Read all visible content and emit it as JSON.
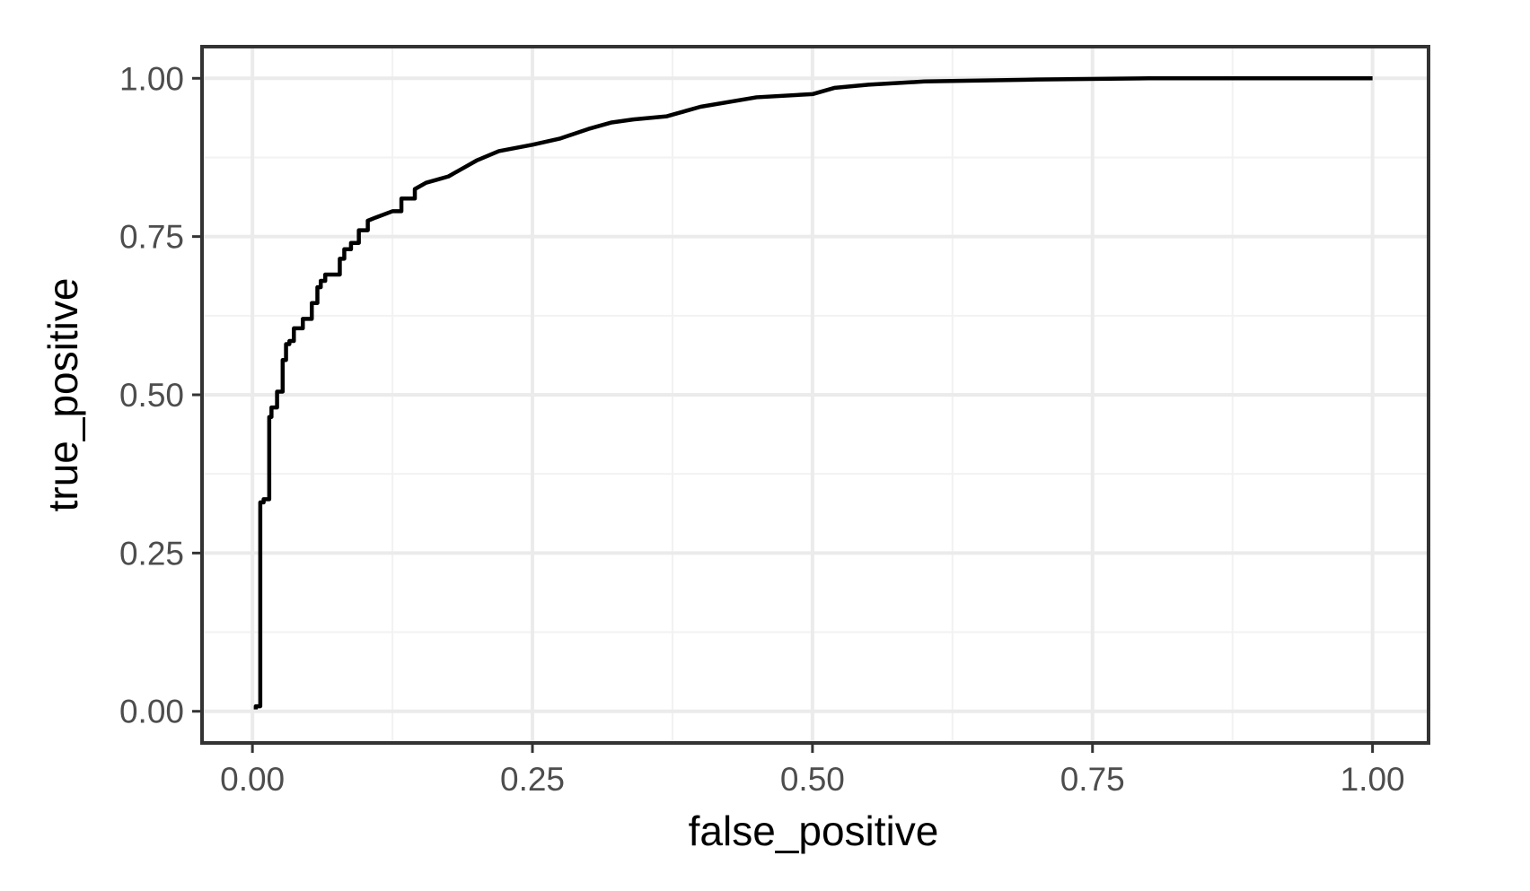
{
  "chart_data": {
    "type": "line",
    "title": "",
    "xlabel": "false_positive",
    "ylabel": "true_positive",
    "xlim": [
      -0.045,
      1.05
    ],
    "ylim": [
      -0.05,
      1.05
    ],
    "x_ticks": [
      "0.00",
      "0.25",
      "0.50",
      "0.75",
      "1.00"
    ],
    "y_ticks": [
      "0.00",
      "0.25",
      "0.50",
      "0.75",
      "1.00"
    ],
    "grid": true,
    "legend": "none",
    "colors": {
      "line": "#000000",
      "grid_major": "#ebebeb",
      "grid_minor": "#f2f2f2",
      "panel_border": "#333333",
      "tick_label": "#4d4d4d"
    },
    "series": [
      {
        "x": [
          0.003,
          0.003,
          0.007,
          0.007,
          0.01,
          0.01,
          0.015,
          0.015,
          0.017,
          0.017,
          0.022,
          0.022,
          0.027,
          0.027,
          0.03,
          0.03,
          0.033,
          0.033,
          0.037,
          0.037,
          0.045,
          0.045,
          0.053,
          0.053,
          0.058,
          0.058,
          0.061,
          0.061,
          0.065,
          0.065,
          0.078,
          0.078,
          0.082,
          0.082,
          0.088,
          0.088,
          0.095,
          0.095,
          0.103,
          0.103,
          0.11,
          0.125,
          0.133,
          0.133,
          0.145,
          0.145,
          0.155,
          0.165,
          0.175,
          0.185,
          0.19,
          0.2,
          0.22,
          0.25,
          0.275,
          0.3,
          0.32,
          0.34,
          0.37,
          0.4,
          0.45,
          0.5,
          0.52,
          0.55,
          0.6,
          0.7,
          0.8,
          1.0
        ],
        "y": [
          0.003,
          0.008,
          0.008,
          0.33,
          0.33,
          0.335,
          0.335,
          0.465,
          0.465,
          0.48,
          0.48,
          0.505,
          0.505,
          0.555,
          0.555,
          0.58,
          0.58,
          0.585,
          0.585,
          0.605,
          0.605,
          0.62,
          0.62,
          0.645,
          0.645,
          0.67,
          0.67,
          0.68,
          0.68,
          0.69,
          0.69,
          0.715,
          0.715,
          0.73,
          0.73,
          0.74,
          0.74,
          0.76,
          0.76,
          0.775,
          0.78,
          0.79,
          0.79,
          0.81,
          0.81,
          0.825,
          0.835,
          0.84,
          0.845,
          0.855,
          0.86,
          0.87,
          0.885,
          0.895,
          0.905,
          0.92,
          0.93,
          0.935,
          0.94,
          0.955,
          0.97,
          0.975,
          0.985,
          0.99,
          0.995,
          0.998,
          1.0,
          1.0
        ]
      }
    ]
  }
}
